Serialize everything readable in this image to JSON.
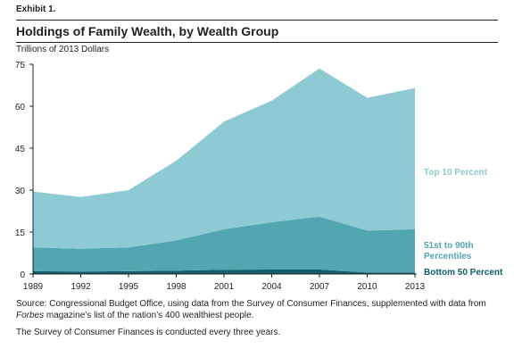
{
  "header": {
    "exhibit": "Exhibit 1.",
    "title": "Holdings of Family Wealth, by Wealth Group"
  },
  "chart_data": {
    "type": "area",
    "stacked": true,
    "ylabel": "Trillions of 2013 Dollars",
    "ylim": [
      0,
      75
    ],
    "yticks": [
      0,
      15,
      30,
      45,
      60,
      75
    ],
    "x": [
      1989,
      1992,
      1995,
      1998,
      2001,
      2004,
      2007,
      2010,
      2013
    ],
    "series": [
      {
        "name": "Bottom 50 Percent",
        "color": "#0f5e6b",
        "values": [
          1.0,
          0.9,
          1.0,
          1.2,
          1.5,
          1.6,
          1.6,
          0.5,
          0.5
        ]
      },
      {
        "name": "51st to 90th Percentiles",
        "color": "#52a6b1",
        "values": [
          8.5,
          8.1,
          8.5,
          10.8,
          14.5,
          16.9,
          18.9,
          15.0,
          15.5
        ]
      },
      {
        "name": "Top 10 Percent",
        "color": "#8ecad3",
        "values": [
          20.0,
          18.5,
          20.5,
          28.5,
          38.5,
          43.5,
          53.0,
          47.5,
          50.5
        ]
      }
    ]
  },
  "source": {
    "prefix": "Source: Congressional Budget Office, using data from the Survey of Consumer Finances, supplemented with data from ",
    "publication": "Forbes",
    "suffix": " magazine’s list of the nation’s 400 wealthiest people."
  },
  "note": "The Survey of Consumer Finances is conducted every three years."
}
